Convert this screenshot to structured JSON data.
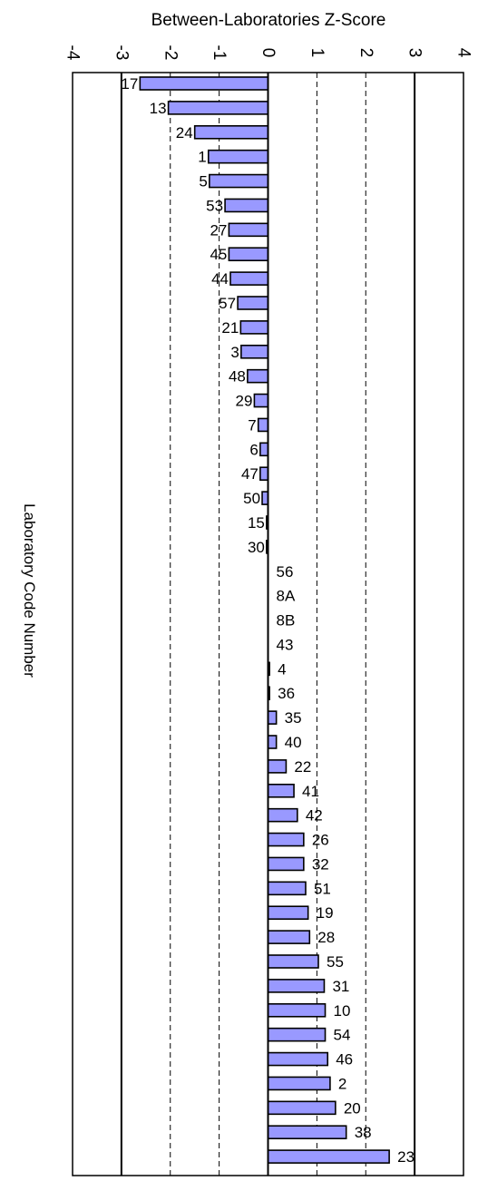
{
  "chart_data": {
    "type": "bar",
    "orientation": "horizontal",
    "title": "",
    "xlabel": "Between-Laboratories Z-Score",
    "ylabel": "Laboratory Code Number",
    "xlim": [
      -4,
      4
    ],
    "xticks": [
      -4,
      -3,
      -2,
      -1,
      0,
      1,
      2,
      3,
      4
    ],
    "tick_labels": [
      "-4",
      "-3",
      "-2",
      "-1",
      "0",
      "1",
      "2",
      "3",
      "4"
    ],
    "grid": "vertical lines at each unit; dashed at ±1 and ±2, solid at ±3",
    "bar_color": "#9999ff",
    "bar_edge_color": "#000000",
    "categories": [
      "17",
      "13",
      "24",
      "1",
      "5",
      "53",
      "27",
      "45",
      "44",
      "57",
      "21",
      "3",
      "48",
      "29",
      "7",
      "6",
      "47",
      "50",
      "15",
      "30",
      "56",
      "8A",
      "8B",
      "43",
      "4",
      "36",
      "35",
      "40",
      "22",
      "41",
      "42",
      "26",
      "32",
      "51",
      "19",
      "28",
      "55",
      "31",
      "10",
      "54",
      "46",
      "2",
      "20",
      "38",
      "23"
    ],
    "values": [
      -2.62,
      -2.04,
      -1.5,
      -1.22,
      -1.2,
      -0.88,
      -0.8,
      -0.8,
      -0.77,
      -0.62,
      -0.56,
      -0.55,
      -0.42,
      -0.28,
      -0.2,
      -0.16,
      -0.16,
      -0.12,
      -0.03,
      -0.03,
      0.0,
      0.0,
      0.0,
      0.0,
      0.03,
      0.03,
      0.17,
      0.17,
      0.37,
      0.53,
      0.6,
      0.73,
      0.73,
      0.77,
      0.82,
      0.85,
      1.03,
      1.15,
      1.17,
      1.17,
      1.22,
      1.27,
      1.38,
      1.6,
      2.48
    ]
  }
}
